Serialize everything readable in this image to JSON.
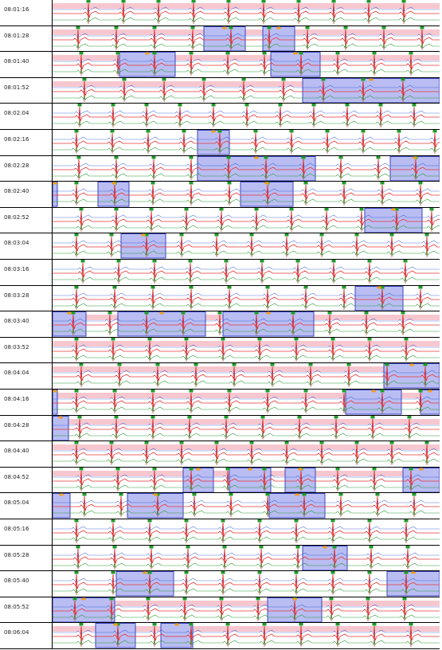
{
  "colors": {
    "trace_red": "#e8383a",
    "trace_blue": "#2b55d6",
    "trace_green": "#2e9a3a",
    "beat_marker": "#1f9a2a",
    "ectopic_marker": "#f0a020",
    "band_pink": "#f7c7cf",
    "selection_fill": "#b9bdf2",
    "selection_border": "#3a44c0",
    "spike": "#cc1b1b"
  },
  "icons": {
    "beat_marker": "green-square-marker",
    "ectopic_marker": "orange-dot-marker"
  },
  "strips": [
    {
      "time": "08:01:16",
      "pink": true
    },
    {
      "time": "08:01:28",
      "pink": true
    },
    {
      "time": "08:01:40",
      "pink": true
    },
    {
      "time": "08:01:52",
      "pink": true
    },
    {
      "time": "08:02:04",
      "pink": false
    },
    {
      "time": "08:02:16",
      "pink": false
    },
    {
      "time": "08:02:28",
      "pink": false
    },
    {
      "time": "08:02:40",
      "pink": false
    },
    {
      "time": "08:02:52",
      "pink": false
    },
    {
      "time": "08:03:04",
      "pink": false
    },
    {
      "time": "08:03:16",
      "pink": false
    },
    {
      "time": "08:03:28",
      "pink": false
    },
    {
      "time": "08:03:40",
      "pink": true
    },
    {
      "time": "08:03:52",
      "pink": true
    },
    {
      "time": "08:04:04",
      "pink": true
    },
    {
      "time": "08:04:16",
      "pink": true
    },
    {
      "time": "08:04:28",
      "pink": true
    },
    {
      "time": "08:04:40",
      "pink": true
    },
    {
      "time": "08:04:52",
      "pink": true
    },
    {
      "time": "08:05:04",
      "pink": false
    },
    {
      "time": "08:05:16",
      "pink": false
    },
    {
      "time": "08:05:28",
      "pink": false
    },
    {
      "time": "08:05:40",
      "pink": false
    },
    {
      "time": "08:05:52",
      "pink": true
    },
    {
      "time": "08:06:04",
      "pink": true
    }
  ]
}
